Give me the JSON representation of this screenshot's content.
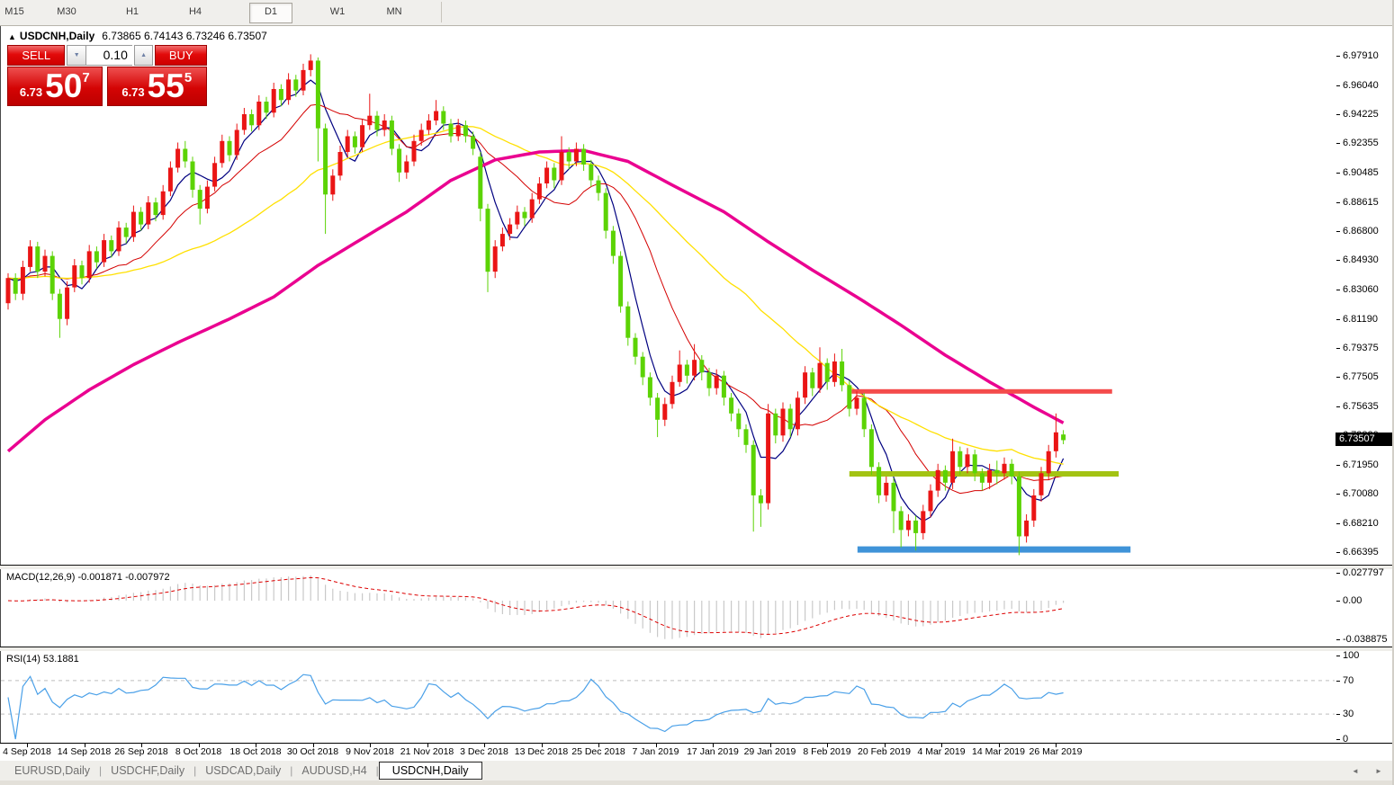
{
  "toolbar": {
    "timeframes": [
      "M15",
      "M30",
      "H1",
      "H4",
      "D1",
      "W1",
      "MN"
    ],
    "active": "D1"
  },
  "chart": {
    "title": {
      "arrow": "▲",
      "symbol": "USDCNH,Daily",
      "ohlc": "6.73865 6.74143 6.73246 6.73507"
    },
    "trade": {
      "sell_label": "SELL",
      "buy_label": "BUY",
      "volume": "0.10",
      "spinner_down": "▼",
      "spinner_up": "▲",
      "sell_price_prefix": "6.73",
      "sell_price_main": "50",
      "sell_price_sup": "7",
      "buy_price_prefix": "6.73",
      "buy_price_main": "55",
      "buy_price_sup": "5"
    }
  },
  "chart_data": {
    "type": "candlestick",
    "title": "USDCNH,Daily",
    "current_price": "6.73507",
    "ylim": [
      6.6565,
      6.9962
    ],
    "price_axis_ticks": [
      "6.97910",
      "6.96040",
      "6.94225",
      "6.92355",
      "6.90485",
      "6.88615",
      "6.86800",
      "6.84930",
      "6.83060",
      "6.81190",
      "6.79375",
      "6.77505",
      "6.75635",
      "6.73820",
      "6.71950",
      "6.70080",
      "6.68210",
      "6.66395"
    ],
    "x_labels": [
      "4 Sep 2018",
      "14 Sep 2018",
      "26 Sep 2018",
      "8 Oct 2018",
      "18 Oct 2018",
      "30 Oct 2018",
      "9 Nov 2018",
      "21 Nov 2018",
      "3 Dec 2018",
      "13 Dec 2018",
      "25 Dec 2018",
      "7 Jan 2019",
      "17 Jan 2019",
      "29 Jan 2019",
      "8 Feb 2019",
      "20 Feb 2019",
      "4 Mar 2019",
      "14 Mar 2019",
      "26 Mar 2019"
    ],
    "up_color": "#ea1515",
    "down_color": "#5cd305",
    "candles": [
      [
        6.822,
        6.841,
        6.818,
        6.838
      ],
      [
        6.838,
        6.841,
        6.824,
        6.828
      ],
      [
        6.828,
        6.849,
        6.824,
        6.845
      ],
      [
        6.845,
        6.862,
        6.842,
        6.858
      ],
      [
        6.858,
        6.861,
        6.838,
        6.842
      ],
      [
        6.842,
        6.856,
        6.839,
        6.852
      ],
      [
        6.852,
        6.855,
        6.824,
        6.828
      ],
      [
        6.828,
        6.831,
        6.8,
        6.812
      ],
      [
        6.812,
        6.836,
        6.808,
        6.832
      ],
      [
        6.832,
        6.85,
        6.829,
        6.846
      ],
      [
        6.846,
        6.849,
        6.834,
        6.838
      ],
      [
        6.838,
        6.859,
        6.835,
        6.855
      ],
      [
        6.855,
        6.858,
        6.844,
        6.848
      ],
      [
        6.848,
        6.866,
        6.845,
        6.862
      ],
      [
        6.862,
        6.865,
        6.851,
        6.855
      ],
      [
        6.855,
        6.874,
        6.852,
        6.87
      ],
      [
        6.87,
        6.873,
        6.86,
        6.864
      ],
      [
        6.864,
        6.884,
        6.861,
        6.88
      ],
      [
        6.88,
        6.883,
        6.868,
        6.872
      ],
      [
        6.872,
        6.89,
        6.869,
        6.886
      ],
      [
        6.886,
        6.889,
        6.874,
        6.878
      ],
      [
        6.878,
        6.897,
        6.875,
        6.893
      ],
      [
        6.893,
        6.912,
        6.89,
        6.908
      ],
      [
        6.908,
        6.924,
        6.905,
        6.92
      ],
      [
        6.92,
        6.925,
        6.908,
        6.912
      ],
      [
        6.912,
        6.915,
        6.889,
        6.894
      ],
      [
        6.894,
        6.897,
        6.872,
        6.882
      ],
      [
        6.882,
        6.9,
        6.879,
        6.896
      ],
      [
        6.896,
        6.915,
        6.893,
        6.911
      ],
      [
        6.911,
        6.929,
        6.908,
        6.925
      ],
      [
        6.925,
        6.928,
        6.912,
        6.916
      ],
      [
        6.916,
        6.936,
        6.913,
        6.932
      ],
      [
        6.932,
        6.946,
        6.929,
        6.942
      ],
      [
        6.942,
        6.945,
        6.931,
        6.935
      ],
      [
        6.935,
        6.954,
        6.932,
        6.95
      ],
      [
        6.95,
        6.953,
        6.939,
        6.943
      ],
      [
        6.943,
        6.962,
        6.94,
        6.958
      ],
      [
        6.958,
        6.961,
        6.947,
        6.951
      ],
      [
        6.951,
        6.968,
        6.948,
        6.964
      ],
      [
        6.964,
        6.967,
        6.953,
        6.957
      ],
      [
        6.957,
        6.974,
        6.954,
        6.97
      ],
      [
        6.97,
        6.98,
        6.966,
        6.976
      ],
      [
        6.976,
        6.978,
        6.912,
        6.933
      ],
      [
        6.933,
        6.936,
        6.866,
        6.891
      ],
      [
        6.891,
        6.907,
        6.887,
        6.903
      ],
      [
        6.903,
        6.922,
        6.9,
        6.918
      ],
      [
        6.918,
        6.932,
        6.915,
        6.928
      ],
      [
        6.928,
        6.931,
        6.917,
        6.921
      ],
      [
        6.921,
        6.939,
        6.918,
        6.935
      ],
      [
        6.935,
        6.955,
        6.932,
        6.941
      ],
      [
        6.941,
        6.944,
        6.928,
        6.932
      ],
      [
        6.932,
        6.942,
        6.928,
        6.938
      ],
      [
        6.938,
        6.941,
        6.916,
        6.92
      ],
      [
        6.92,
        6.923,
        6.899,
        6.905
      ],
      [
        6.905,
        6.916,
        6.901,
        6.912
      ],
      [
        6.912,
        6.929,
        6.909,
        6.925
      ],
      [
        6.925,
        6.936,
        6.922,
        6.932
      ],
      [
        6.932,
        6.942,
        6.929,
        6.938
      ],
      [
        6.938,
        6.951,
        6.935,
        6.944
      ],
      [
        6.944,
        6.947,
        6.932,
        6.936
      ],
      [
        6.936,
        6.939,
        6.924,
        6.928
      ],
      [
        6.928,
        6.939,
        6.925,
        6.935
      ],
      [
        6.935,
        6.938,
        6.924,
        6.928
      ],
      [
        6.928,
        6.931,
        6.916,
        6.92
      ],
      [
        6.915,
        6.918,
        6.874,
        6.882
      ],
      [
        6.882,
        6.885,
        6.829,
        6.842
      ],
      [
        6.842,
        6.862,
        6.838,
        6.858
      ],
      [
        6.858,
        6.87,
        6.855,
        6.866
      ],
      [
        6.866,
        6.876,
        6.862,
        6.872
      ],
      [
        6.872,
        6.884,
        6.869,
        6.88
      ],
      [
        6.88,
        6.883,
        6.871,
        6.876
      ],
      [
        6.876,
        6.892,
        6.873,
        6.888
      ],
      [
        6.888,
        6.902,
        6.885,
        6.898
      ],
      [
        6.898,
        6.912,
        6.895,
        6.908
      ],
      [
        6.908,
        6.911,
        6.895,
        6.9
      ],
      [
        6.9,
        6.928,
        6.897,
        6.918
      ],
      [
        6.918,
        6.921,
        6.907,
        6.912
      ],
      [
        6.912,
        6.924,
        6.909,
        6.92
      ],
      [
        6.92,
        6.923,
        6.906,
        6.91
      ],
      [
        6.91,
        6.913,
        6.896,
        6.9
      ],
      [
        6.9,
        6.903,
        6.887,
        6.892
      ],
      [
        6.892,
        6.895,
        6.863,
        6.868
      ],
      [
        6.868,
        6.871,
        6.847,
        6.852
      ],
      [
        6.852,
        6.855,
        6.816,
        6.82
      ],
      [
        6.82,
        6.823,
        6.795,
        6.8
      ],
      [
        6.8,
        6.803,
        6.783,
        6.788
      ],
      [
        6.788,
        6.791,
        6.77,
        6.775
      ],
      [
        6.775,
        6.778,
        6.757,
        6.762
      ],
      [
        6.762,
        6.765,
        6.737,
        6.748
      ],
      [
        6.748,
        6.762,
        6.744,
        6.758
      ],
      [
        6.758,
        6.776,
        6.755,
        6.772
      ],
      [
        6.772,
        6.792,
        6.769,
        6.783
      ],
      [
        6.783,
        6.786,
        6.771,
        6.776
      ],
      [
        6.776,
        6.796,
        6.773,
        6.786
      ],
      [
        6.786,
        6.789,
        6.773,
        6.778
      ],
      [
        6.778,
        6.781,
        6.763,
        6.768
      ],
      [
        6.768,
        6.78,
        6.764,
        6.776
      ],
      [
        6.776,
        6.779,
        6.757,
        6.762
      ],
      [
        6.762,
        6.765,
        6.747,
        6.752
      ],
      [
        6.752,
        6.755,
        6.737,
        6.742
      ],
      [
        6.742,
        6.745,
        6.727,
        6.732
      ],
      [
        6.732,
        6.735,
        6.677,
        6.7
      ],
      [
        6.7,
        6.704,
        6.68,
        6.695
      ],
      [
        6.695,
        6.758,
        6.691,
        6.752
      ],
      [
        6.752,
        6.755,
        6.733,
        6.738
      ],
      [
        6.738,
        6.759,
        6.734,
        6.755
      ],
      [
        6.755,
        6.758,
        6.737,
        6.742
      ],
      [
        6.742,
        6.766,
        6.738,
        6.762
      ],
      [
        6.762,
        6.782,
        6.758,
        6.778
      ],
      [
        6.778,
        6.781,
        6.763,
        6.768
      ],
      [
        6.768,
        6.794,
        6.765,
        6.784
      ],
      [
        6.784,
        6.787,
        6.767,
        6.772
      ],
      [
        6.772,
        6.79,
        6.769,
        6.785
      ],
      [
        6.785,
        6.793,
        6.766,
        6.77
      ],
      [
        6.77,
        6.773,
        6.75,
        6.755
      ],
      [
        6.755,
        6.766,
        6.751,
        6.762
      ],
      [
        6.762,
        6.765,
        6.737,
        6.742
      ],
      [
        6.742,
        6.745,
        6.713,
        6.718
      ],
      [
        6.718,
        6.721,
        6.695,
        6.7
      ],
      [
        6.7,
        6.712,
        6.696,
        6.708
      ],
      [
        6.708,
        6.711,
        6.676,
        6.69
      ],
      [
        6.69,
        6.693,
        6.667,
        6.678
      ],
      [
        6.678,
        6.688,
        6.674,
        6.684
      ],
      [
        6.684,
        6.687,
        6.665,
        6.676
      ],
      [
        6.676,
        6.694,
        6.672,
        6.69
      ],
      [
        6.69,
        6.707,
        6.686,
        6.703
      ],
      [
        6.703,
        6.72,
        6.699,
        6.716
      ],
      [
        6.716,
        6.719,
        6.703,
        6.708
      ],
      [
        6.708,
        6.736,
        6.704,
        6.728
      ],
      [
        6.728,
        6.731,
        6.713,
        6.718
      ],
      [
        6.718,
        6.73,
        6.714,
        6.726
      ],
      [
        6.726,
        6.729,
        6.709,
        6.714
      ],
      [
        6.714,
        6.717,
        6.703,
        6.708
      ],
      [
        6.708,
        6.72,
        6.704,
        6.716
      ],
      [
        6.716,
        6.722,
        6.707,
        6.714
      ],
      [
        6.714,
        6.724,
        6.71,
        6.72
      ],
      [
        6.72,
        6.723,
        6.707,
        6.712
      ],
      [
        6.712,
        6.715,
        6.662,
        6.674
      ],
      [
        6.674,
        6.688,
        6.67,
        6.684
      ],
      [
        6.684,
        6.704,
        6.68,
        6.7
      ],
      [
        6.7,
        6.718,
        6.696,
        6.714
      ],
      [
        6.714,
        6.732,
        6.71,
        6.728
      ],
      [
        6.728,
        6.752,
        6.724,
        6.74
      ],
      [
        6.73865,
        6.74143,
        6.73246,
        6.73507
      ]
    ],
    "moving_averages": [
      {
        "name": "fast",
        "type": "sma",
        "period": 5,
        "color": "#000080",
        "width": 1.2
      },
      {
        "name": "mid",
        "type": "sma",
        "period": 13,
        "color": "#d40000",
        "width": 1
      },
      {
        "name": "slow",
        "type": "sma",
        "period": 34,
        "color": "#ffe000",
        "width": 1.3
      },
      {
        "name": "long",
        "type": "points",
        "color": "#ea0090",
        "width": 3.5,
        "points": [
          [
            0,
            6.728
          ],
          [
            5,
            6.748
          ],
          [
            11,
            6.767
          ],
          [
            17,
            6.783
          ],
          [
            23,
            6.797
          ],
          [
            30,
            6.812
          ],
          [
            36,
            6.826
          ],
          [
            42,
            6.846
          ],
          [
            48,
            6.863
          ],
          [
            54,
            6.88
          ],
          [
            60,
            6.9
          ],
          [
            66,
            6.913
          ],
          [
            72,
            6.918
          ],
          [
            78,
            6.919
          ],
          [
            84,
            6.912
          ],
          [
            90,
            6.897
          ],
          [
            97,
            6.88
          ],
          [
            103,
            6.861
          ],
          [
            109,
            6.843
          ],
          [
            115,
            6.826
          ],
          [
            121,
            6.808
          ],
          [
            127,
            6.789
          ],
          [
            133,
            6.772
          ],
          [
            139,
            6.756
          ],
          [
            143,
            6.746
          ]
        ]
      }
    ],
    "hlines": [
      {
        "price": 6.766,
        "from": 114.3,
        "to": 149.6,
        "color": "#f44b4b",
        "width": 5
      },
      {
        "price": 6.7136,
        "from": 114.0,
        "to": 150.5,
        "color": "#a3c313",
        "width": 6
      },
      {
        "price": 6.6656,
        "from": 115.1,
        "to": 152.1,
        "color": "#3f93d8",
        "width": 7
      }
    ],
    "indicators": {
      "macd": {
        "label": "MACD(12,26,9) -0.001871 -0.007972",
        "params": [
          12,
          26,
          9
        ],
        "main_value": -0.001871,
        "signal_value": -0.007972,
        "ticks": [
          "0.027797",
          "0.00",
          "-0.038875"
        ],
        "histogram_color": "#c9c9c9",
        "signal_color": "#dd0000"
      },
      "rsi": {
        "label": "RSI(14) 53.1881",
        "period": 14,
        "value": 53.1881,
        "ticks": [
          "100",
          "70",
          "30",
          "0"
        ],
        "levels": [
          70,
          30
        ],
        "color": "#4aa0e8"
      }
    }
  },
  "tabs": {
    "items": [
      "EURUSD,Daily",
      "USDCHF,Daily",
      "USDCAD,Daily",
      "AUDUSD,H4",
      "USDCNH,Daily"
    ],
    "active": "USDCNH,Daily",
    "scroll_left": "◄",
    "scroll_right": "►"
  }
}
